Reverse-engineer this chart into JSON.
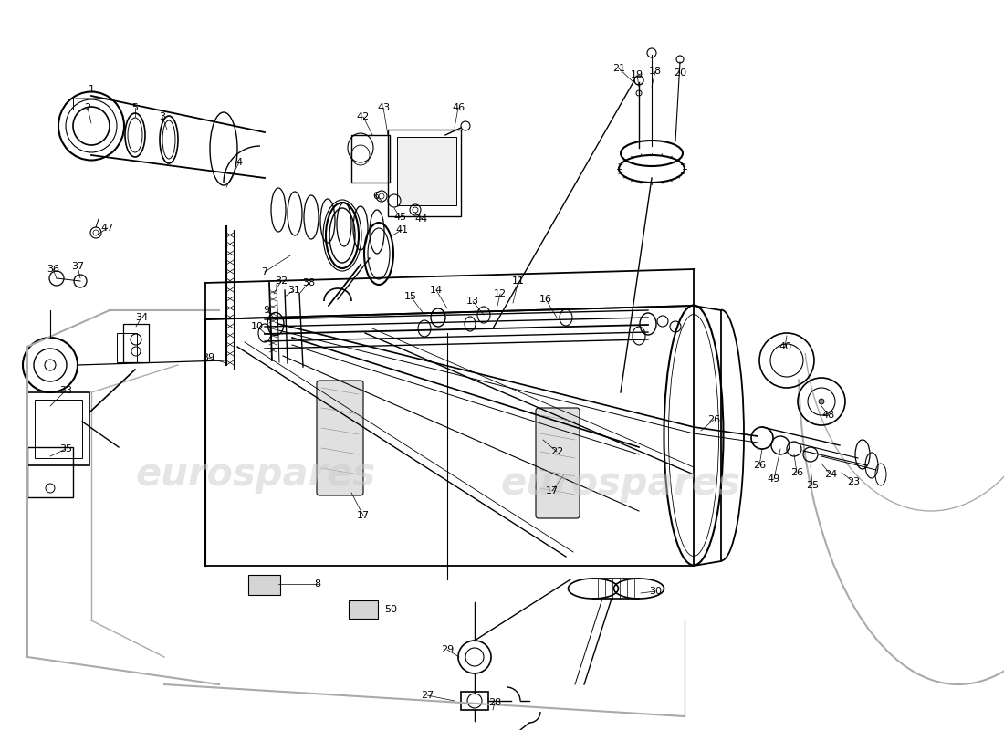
{
  "bg_color": "#ffffff",
  "watermark_text": "eurospares",
  "wm_color": "#cccccc",
  "wm_alpha": 0.5,
  "wm_fontsize": 30,
  "line_color": "#000000",
  "gray_color": "#aaaaaa",
  "label_fontsize": 8,
  "fig_w": 11.0,
  "fig_h": 8.0,
  "dpi": 100
}
